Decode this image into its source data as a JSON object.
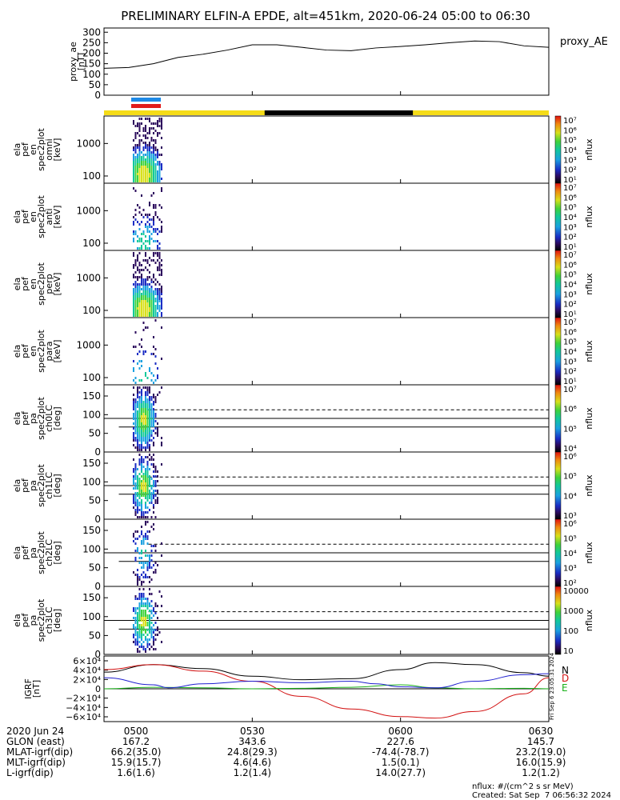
{
  "title": "PRELIMINARY ELFIN-A EPDE, alt=451km, 2020-06-24 05:00 to 06:30",
  "colors": {
    "axis": "#000000",
    "sun_bar": "#f5dc18",
    "shadow_bar": "#000000",
    "bar_blue": "#1e8ae6",
    "bar_red": "#e11b1b",
    "field_N": "#000000",
    "field_D": "#d21010",
    "field_E": "#18b018",
    "field_H": "#2020d0"
  },
  "time_axis": {
    "start_min": 0,
    "end_min": 90,
    "tick_labels": [
      "0500",
      "0530",
      "0600",
      "0630"
    ],
    "tick_minutes": [
      0,
      30,
      60,
      90
    ]
  },
  "panels": {
    "proxy_ae": {
      "ylabel": [
        "proxy_ae",
        "[nT]"
      ],
      "yticks": [
        "0",
        "50",
        "100",
        "150",
        "200",
        "250",
        "300"
      ],
      "legend": "proxy_AE"
    },
    "omni": {
      "ylabel": [
        "ela",
        "pef",
        "en",
        "spec2plot",
        "omni",
        "[keV]"
      ],
      "yticks": [
        "1000",
        "100"
      ]
    },
    "anti": {
      "ylabel": [
        "ela",
        "pef",
        "en",
        "spec2plot",
        "anti",
        "[keV]"
      ],
      "yticks": [
        "1000",
        "100"
      ]
    },
    "perp": {
      "ylabel": [
        "ela",
        "pef",
        "en",
        "spec2plot",
        "perp",
        "[keV]"
      ],
      "yticks": [
        "1000",
        "100"
      ]
    },
    "para": {
      "ylabel": [
        "ela",
        "pef",
        "en",
        "spec2plot",
        "para",
        "[keV]"
      ],
      "yticks": [
        "1000",
        "100"
      ]
    },
    "ch0": {
      "ylabel": [
        "ela",
        "pef",
        "pa",
        "spec2plot",
        "ch0LC",
        "[deg]"
      ],
      "yticks": [
        "0",
        "50",
        "100",
        "150"
      ]
    },
    "ch1": {
      "ylabel": [
        "ela",
        "pef",
        "pa",
        "spec2plot",
        "ch1LC",
        "[deg]"
      ],
      "yticks": [
        "0",
        "50",
        "100",
        "150"
      ]
    },
    "ch2": {
      "ylabel": [
        "ela",
        "pef",
        "pa",
        "spec2plot",
        "ch2LC",
        "[deg]"
      ],
      "yticks": [
        "0",
        "50",
        "100",
        "150"
      ]
    },
    "ch3": {
      "ylabel": [
        "ela",
        "pef",
        "pa",
        "spec2plot",
        "ch3LC",
        "[deg]"
      ],
      "yticks": [
        "0",
        "50",
        "100",
        "150"
      ]
    },
    "igrf": {
      "ylabel": [
        "IGRF",
        "[nT]"
      ],
      "yticks": [
        "6×10⁴",
        "4×10⁴",
        "2×10⁴",
        "0",
        "−2×10⁴",
        "−4×10⁴",
        "−6×10⁴"
      ],
      "legend": [
        "N",
        "D",
        "E"
      ],
      "side_text": "Fri Sep  6 23:05:31 2024"
    }
  },
  "colorbars": {
    "label": "nflux",
    "en_ticks": [
      "10⁷",
      "10⁶",
      "10⁵",
      "10⁴",
      "10³",
      "10²",
      "10¹"
    ],
    "ch0_ticks": [
      "10⁷",
      "10⁶",
      "10⁵",
      "10⁴"
    ],
    "ch1_ticks": [
      "10⁶",
      "10⁵",
      "10⁴",
      "10³"
    ],
    "ch2_ticks": [
      "10⁶",
      "10⁵",
      "10⁴",
      "10³",
      "10²"
    ],
    "ch3_ticks": [
      "10000",
      "1000",
      "100",
      "10"
    ]
  },
  "footer": {
    "rows": [
      {
        "label": "2020 Jun 24",
        "values": [
          "0500",
          "0530",
          "0600",
          "0630"
        ]
      },
      {
        "label": "GLON (east)",
        "values": [
          "167.2",
          "343.6",
          "227.6",
          "145.7"
        ]
      },
      {
        "label": "MLAT-igrf(dip)",
        "values": [
          "66.2(35.0)",
          "24.8(29.3)",
          "-74.4(-78.7)",
          "23.2(19.0)"
        ]
      },
      {
        "label": "MLT-igrf(dip)",
        "values": [
          "15.9(15.7)",
          "4.6(4.6)",
          "1.5(0.1)",
          "16.0(15.9)"
        ]
      },
      {
        "label": "L-igrf(dip)",
        "values": [
          "1.6(1.6)",
          "1.2(1.4)",
          "14.0(27.7)",
          "1.2(1.2)"
        ]
      }
    ],
    "units": "nflux: #/(cm^2 s sr MeV)",
    "created": "Created: Sat Sep  7 06:56:32 2024"
  },
  "chart_data": {
    "type": "line",
    "title": "PRELIMINARY ELFIN-A EPDE, alt=451km, 2020-06-24 05:00 to 06:30",
    "x_unit": "minutes after 2020-06-24 05:00",
    "series": [
      {
        "name": "proxy_AE",
        "x": [
          0,
          5,
          10,
          15,
          20,
          25,
          30,
          35,
          40,
          45,
          50,
          55,
          60,
          65,
          70,
          75,
          80,
          85,
          90
        ],
        "values": [
          128,
          132,
          150,
          180,
          195,
          215,
          240,
          240,
          228,
          215,
          212,
          225,
          232,
          240,
          250,
          258,
          255,
          235,
          228
        ]
      },
      {
        "name": "N",
        "x": [
          0,
          10,
          20,
          30,
          40,
          50,
          60,
          67,
          75,
          85,
          90
        ],
        "values": [
          33000,
          48000,
          40000,
          25000,
          18000,
          20000,
          38000,
          52000,
          48000,
          32000,
          25000
        ]
      },
      {
        "name": "D",
        "x": [
          0,
          10,
          20,
          30,
          40,
          50,
          60,
          67,
          75,
          85,
          90
        ],
        "values": [
          38000,
          48000,
          35000,
          15000,
          -15000,
          -40000,
          -55000,
          -58000,
          -45000,
          -10000,
          22000
        ]
      },
      {
        "name": "E",
        "x": [
          0,
          10,
          20,
          30,
          40,
          50,
          60,
          67,
          75,
          85,
          90
        ],
        "values": [
          0,
          3000,
          2000,
          0,
          1000,
          3000,
          8000,
          2000,
          0,
          1000,
          0
        ]
      },
      {
        "name": "H",
        "x": [
          0,
          10,
          13,
          20,
          30,
          40,
          50,
          55,
          60,
          67,
          75,
          85,
          90
        ],
        "values": [
          22000,
          8000,
          2000,
          10000,
          15000,
          12000,
          15000,
          10000,
          4000,
          2000,
          15000,
          28000,
          30000
        ]
      }
    ],
    "xlim": [
      0,
      90
    ],
    "proxy_ae_ylim": [
      0,
      320
    ],
    "igrf_ylim": [
      -65000,
      65000
    ],
    "energy_ylim_keV": [
      60,
      7000
    ],
    "pitch_angle_ylim_deg": [
      0,
      180
    ],
    "pitch_angle_reference_deg": [
      90,
      67,
      113
    ],
    "sun_shadow": {
      "shadow_start_min": 32.5,
      "shadow_end_min": 62.5
    },
    "observation_window_min": [
      5.5,
      11.5
    ],
    "spectrogram_note": "all spectrogram data falls between 05:05.5 and 05:11.5"
  }
}
